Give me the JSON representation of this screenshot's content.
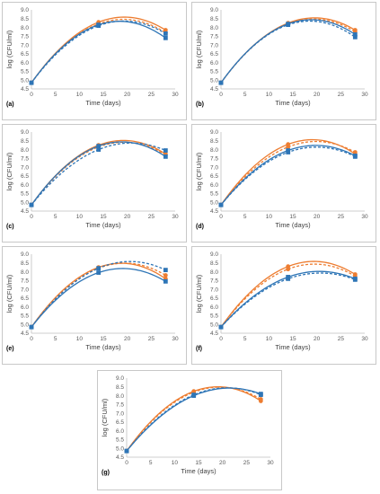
{
  "colors": {
    "blue": "#2e75b6",
    "orange": "#ed7d31",
    "axis": "#bfbfbf",
    "text": "#595959"
  },
  "chart_data": [
    {
      "type": "line",
      "panel_label": "(a)",
      "xlabel": "Time (days)",
      "ylabel": "log (CFU/ml)",
      "xlim": [
        0,
        30
      ],
      "ylim": [
        4.5,
        9.0
      ],
      "xticks": [
        0,
        5,
        10,
        15,
        20,
        25,
        30
      ],
      "yticks": [
        4.5,
        5.0,
        5.5,
        6.0,
        6.5,
        7.0,
        7.5,
        8.0,
        8.5,
        9.0
      ],
      "x": [
        0,
        14,
        28
      ],
      "series": [
        {
          "color": "orange",
          "style": "solid",
          "marker": "circle",
          "values": [
            4.85,
            8.3,
            7.85
          ]
        },
        {
          "color": "orange",
          "style": "dashed",
          "marker": "circle",
          "values": [
            4.85,
            8.2,
            7.7
          ]
        },
        {
          "color": "blue",
          "style": "dashed",
          "marker": "square",
          "values": [
            4.85,
            8.1,
            7.65
          ]
        },
        {
          "color": "blue",
          "style": "solid",
          "marker": "square",
          "values": [
            4.85,
            8.15,
            7.4
          ]
        }
      ]
    },
    {
      "type": "line",
      "panel_label": "(b)",
      "xlabel": "Time (days)",
      "ylabel": "log (CFU/ml)",
      "xlim": [
        0,
        30
      ],
      "ylim": [
        4.5,
        9.0
      ],
      "xticks": [
        0,
        5,
        10,
        15,
        20,
        25,
        30
      ],
      "yticks": [
        4.5,
        5.0,
        5.5,
        6.0,
        6.5,
        7.0,
        7.5,
        8.0,
        8.5,
        9.0
      ],
      "x": [
        0,
        14,
        28
      ],
      "series": [
        {
          "color": "orange",
          "style": "solid",
          "marker": "circle",
          "values": [
            4.85,
            8.25,
            7.85
          ]
        },
        {
          "color": "orange",
          "style": "dashed",
          "marker": "circle",
          "values": [
            4.85,
            8.2,
            7.75
          ]
        },
        {
          "color": "blue",
          "style": "solid",
          "marker": "square",
          "values": [
            4.85,
            8.2,
            7.6
          ]
        },
        {
          "color": "blue",
          "style": "dashed",
          "marker": "square",
          "values": [
            4.85,
            8.15,
            7.45
          ]
        }
      ]
    },
    {
      "type": "line",
      "panel_label": "(c)",
      "xlabel": "Time (days)",
      "ylabel": "log (CFU/ml)",
      "xlim": [
        0,
        30
      ],
      "ylim": [
        4.5,
        9.0
      ],
      "xticks": [
        0,
        5,
        10,
        15,
        20,
        25,
        30
      ],
      "yticks": [
        4.5,
        5.0,
        5.5,
        6.0,
        6.5,
        7.0,
        7.5,
        8.0,
        8.5,
        9.0
      ],
      "x": [
        0,
        14,
        28
      ],
      "series": [
        {
          "color": "orange",
          "style": "solid",
          "marker": "circle",
          "values": [
            4.85,
            8.25,
            7.75
          ]
        },
        {
          "color": "orange",
          "style": "dashed",
          "marker": "circle",
          "values": [
            4.85,
            8.15,
            7.7
          ]
        },
        {
          "color": "blue",
          "style": "dashed",
          "marker": "square",
          "values": [
            4.85,
            8.0,
            7.95
          ]
        },
        {
          "color": "blue",
          "style": "solid",
          "marker": "square",
          "values": [
            4.85,
            8.2,
            7.6
          ]
        }
      ]
    },
    {
      "type": "line",
      "panel_label": "(d)",
      "xlabel": "Time (days)",
      "ylabel": "log (CFU/ml)",
      "xlim": [
        0,
        30
      ],
      "ylim": [
        4.5,
        9.0
      ],
      "xticks": [
        0,
        5,
        10,
        15,
        20,
        25,
        30
      ],
      "yticks": [
        4.5,
        5.0,
        5.5,
        6.0,
        6.5,
        7.0,
        7.5,
        8.0,
        8.5,
        9.0
      ],
      "x": [
        0,
        14,
        28
      ],
      "series": [
        {
          "color": "orange",
          "style": "solid",
          "marker": "circle",
          "values": [
            4.85,
            8.3,
            7.75
          ]
        },
        {
          "color": "orange",
          "style": "dashed",
          "marker": "circle",
          "values": [
            4.85,
            8.15,
            7.85
          ]
        },
        {
          "color": "blue",
          "style": "solid",
          "marker": "square",
          "values": [
            4.85,
            7.95,
            7.65
          ]
        },
        {
          "color": "blue",
          "style": "dashed",
          "marker": "square",
          "values": [
            4.85,
            7.85,
            7.6
          ]
        }
      ]
    },
    {
      "type": "line",
      "panel_label": "(e)",
      "xlabel": "Time (days)",
      "ylabel": "log (CFU/ml)",
      "xlim": [
        0,
        30
      ],
      "ylim": [
        4.5,
        9.0
      ],
      "xticks": [
        0,
        5,
        10,
        15,
        20,
        25,
        30
      ],
      "yticks": [
        4.5,
        5.0,
        5.5,
        6.0,
        6.5,
        7.0,
        7.5,
        8.0,
        8.5,
        9.0
      ],
      "x": [
        0,
        14,
        28
      ],
      "series": [
        {
          "color": "orange",
          "style": "solid",
          "marker": "circle",
          "values": [
            4.85,
            8.25,
            7.6
          ]
        },
        {
          "color": "orange",
          "style": "dashed",
          "marker": "circle",
          "values": [
            4.85,
            8.2,
            7.8
          ]
        },
        {
          "color": "blue",
          "style": "dashed",
          "marker": "square",
          "values": [
            4.85,
            8.2,
            8.1
          ]
        },
        {
          "color": "blue",
          "style": "solid",
          "marker": "square",
          "values": [
            4.85,
            7.95,
            7.45
          ]
        }
      ]
    },
    {
      "type": "line",
      "panel_label": "(f)",
      "xlabel": "Time (days)",
      "ylabel": "log (CFU/ml)",
      "xlim": [
        0,
        30
      ],
      "ylim": [
        4.5,
        9.0
      ],
      "xticks": [
        0,
        5,
        10,
        15,
        20,
        25,
        30
      ],
      "yticks": [
        4.5,
        5.0,
        5.5,
        6.0,
        6.5,
        7.0,
        7.5,
        8.0,
        8.5,
        9.0
      ],
      "x": [
        0,
        14,
        28
      ],
      "series": [
        {
          "color": "orange",
          "style": "solid",
          "marker": "circle",
          "values": [
            4.85,
            8.3,
            7.85
          ]
        },
        {
          "color": "orange",
          "style": "dashed",
          "marker": "circle",
          "values": [
            4.85,
            8.15,
            7.75
          ]
        },
        {
          "color": "blue",
          "style": "solid",
          "marker": "square",
          "values": [
            4.85,
            7.7,
            7.6
          ]
        },
        {
          "color": "blue",
          "style": "dashed",
          "marker": "square",
          "values": [
            4.85,
            7.6,
            7.55
          ]
        }
      ]
    },
    {
      "type": "line",
      "panel_label": "(g)",
      "xlabel": "Time (days)",
      "ylabel": "log (CFU/ml)",
      "xlim": [
        0,
        30
      ],
      "ylim": [
        4.5,
        9.0
      ],
      "xticks": [
        0,
        5,
        10,
        15,
        20,
        25,
        30
      ],
      "yticks": [
        4.5,
        5.0,
        5.5,
        6.0,
        6.5,
        7.0,
        7.5,
        8.0,
        8.5,
        9.0
      ],
      "x": [
        0,
        14,
        28
      ],
      "series": [
        {
          "color": "orange",
          "style": "solid",
          "marker": "circle",
          "values": [
            4.85,
            8.25,
            7.7
          ]
        },
        {
          "color": "orange",
          "style": "dashed",
          "marker": "circle",
          "values": [
            4.85,
            8.2,
            7.8
          ]
        },
        {
          "color": "blue",
          "style": "solid",
          "marker": "square",
          "values": [
            4.85,
            8.0,
            8.1
          ]
        },
        {
          "color": "blue",
          "style": "dashed",
          "marker": "square",
          "values": [
            4.85,
            8.05,
            8.05
          ]
        }
      ]
    }
  ]
}
